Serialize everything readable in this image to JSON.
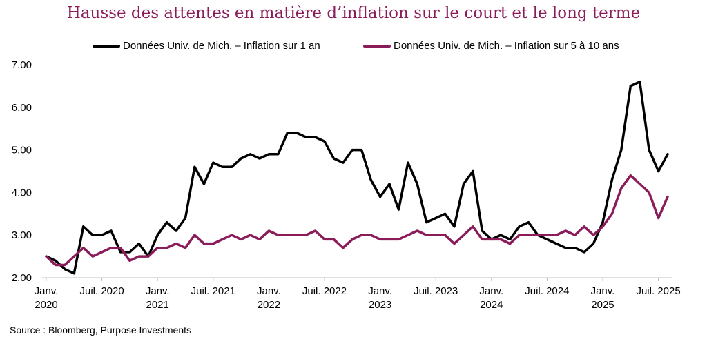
{
  "chart_data": {
    "type": "line",
    "title": "Hausse des attentes en matière d’inflation sur le court et le long terme",
    "ylim": [
      2.0,
      7.0
    ],
    "yticks": [
      "2.00",
      "3.00",
      "4.00",
      "5.00",
      "6.00",
      "7.00"
    ],
    "xticks": [
      {
        "index": 0,
        "line1": "Janv.",
        "line2": "2020"
      },
      {
        "index": 6,
        "line1": "Juil. 2020",
        "line2": ""
      },
      {
        "index": 12,
        "line1": "Janv.",
        "line2": "2021"
      },
      {
        "index": 18,
        "line1": "Juil. 2021",
        "line2": ""
      },
      {
        "index": 24,
        "line1": "Janv.",
        "line2": "2022"
      },
      {
        "index": 30,
        "line1": "Juil. 2022",
        "line2": ""
      },
      {
        "index": 36,
        "line1": "Janv.",
        "line2": "2023"
      },
      {
        "index": 42,
        "line1": "Juil. 2023",
        "line2": ""
      },
      {
        "index": 48,
        "line1": "Janv.",
        "line2": "2024"
      },
      {
        "index": 54,
        "line1": "Juil. 2024",
        "line2": ""
      },
      {
        "index": 60,
        "line1": "Janv.",
        "line2": "2025"
      },
      {
        "index": 66,
        "line1": "Juil. 2025",
        "line2": ""
      }
    ],
    "x_range": "Janv. 2020 – Août 2025 (mensuel)",
    "series": [
      {
        "name": "Données Univ. de Mich. – Inflation sur 1 an",
        "color": "#000000",
        "values": [
          2.5,
          2.4,
          2.2,
          2.1,
          3.2,
          3.0,
          3.0,
          3.1,
          2.6,
          2.6,
          2.8,
          2.5,
          3.0,
          3.3,
          3.1,
          3.4,
          4.6,
          4.2,
          4.7,
          4.6,
          4.6,
          4.8,
          4.9,
          4.8,
          4.9,
          4.9,
          5.4,
          5.4,
          5.3,
          5.3,
          5.2,
          4.8,
          4.7,
          5.0,
          5.0,
          4.3,
          3.9,
          4.2,
          3.6,
          4.7,
          4.2,
          3.3,
          3.4,
          3.5,
          3.2,
          4.2,
          4.5,
          3.1,
          2.9,
          3.0,
          2.9,
          3.2,
          3.3,
          3.0,
          2.9,
          2.8,
          2.7,
          2.7,
          2.6,
          2.8,
          3.3,
          4.3,
          5.0,
          6.5,
          6.6,
          5.0,
          4.5,
          4.9
        ]
      },
      {
        "name": "Données Univ. de Mich. – Inflation sur 5 à 10 ans",
        "color": "#8a1c5a",
        "values": [
          2.5,
          2.3,
          2.3,
          2.5,
          2.7,
          2.5,
          2.6,
          2.7,
          2.7,
          2.4,
          2.5,
          2.5,
          2.7,
          2.7,
          2.8,
          2.7,
          3.0,
          2.8,
          2.8,
          2.9,
          3.0,
          2.9,
          3.0,
          2.9,
          3.1,
          3.0,
          3.0,
          3.0,
          3.0,
          3.1,
          2.9,
          2.9,
          2.7,
          2.9,
          3.0,
          3.0,
          2.9,
          2.9,
          2.9,
          3.0,
          3.1,
          3.0,
          3.0,
          3.0,
          2.8,
          3.0,
          3.2,
          2.9,
          2.9,
          2.9,
          2.8,
          3.0,
          3.0,
          3.0,
          3.0,
          3.0,
          3.1,
          3.0,
          3.2,
          3.0,
          3.2,
          3.5,
          4.1,
          4.4,
          4.2,
          4.0,
          3.4,
          3.9
        ]
      }
    ]
  },
  "source": "Source : Bloomberg, Purpose Investments"
}
